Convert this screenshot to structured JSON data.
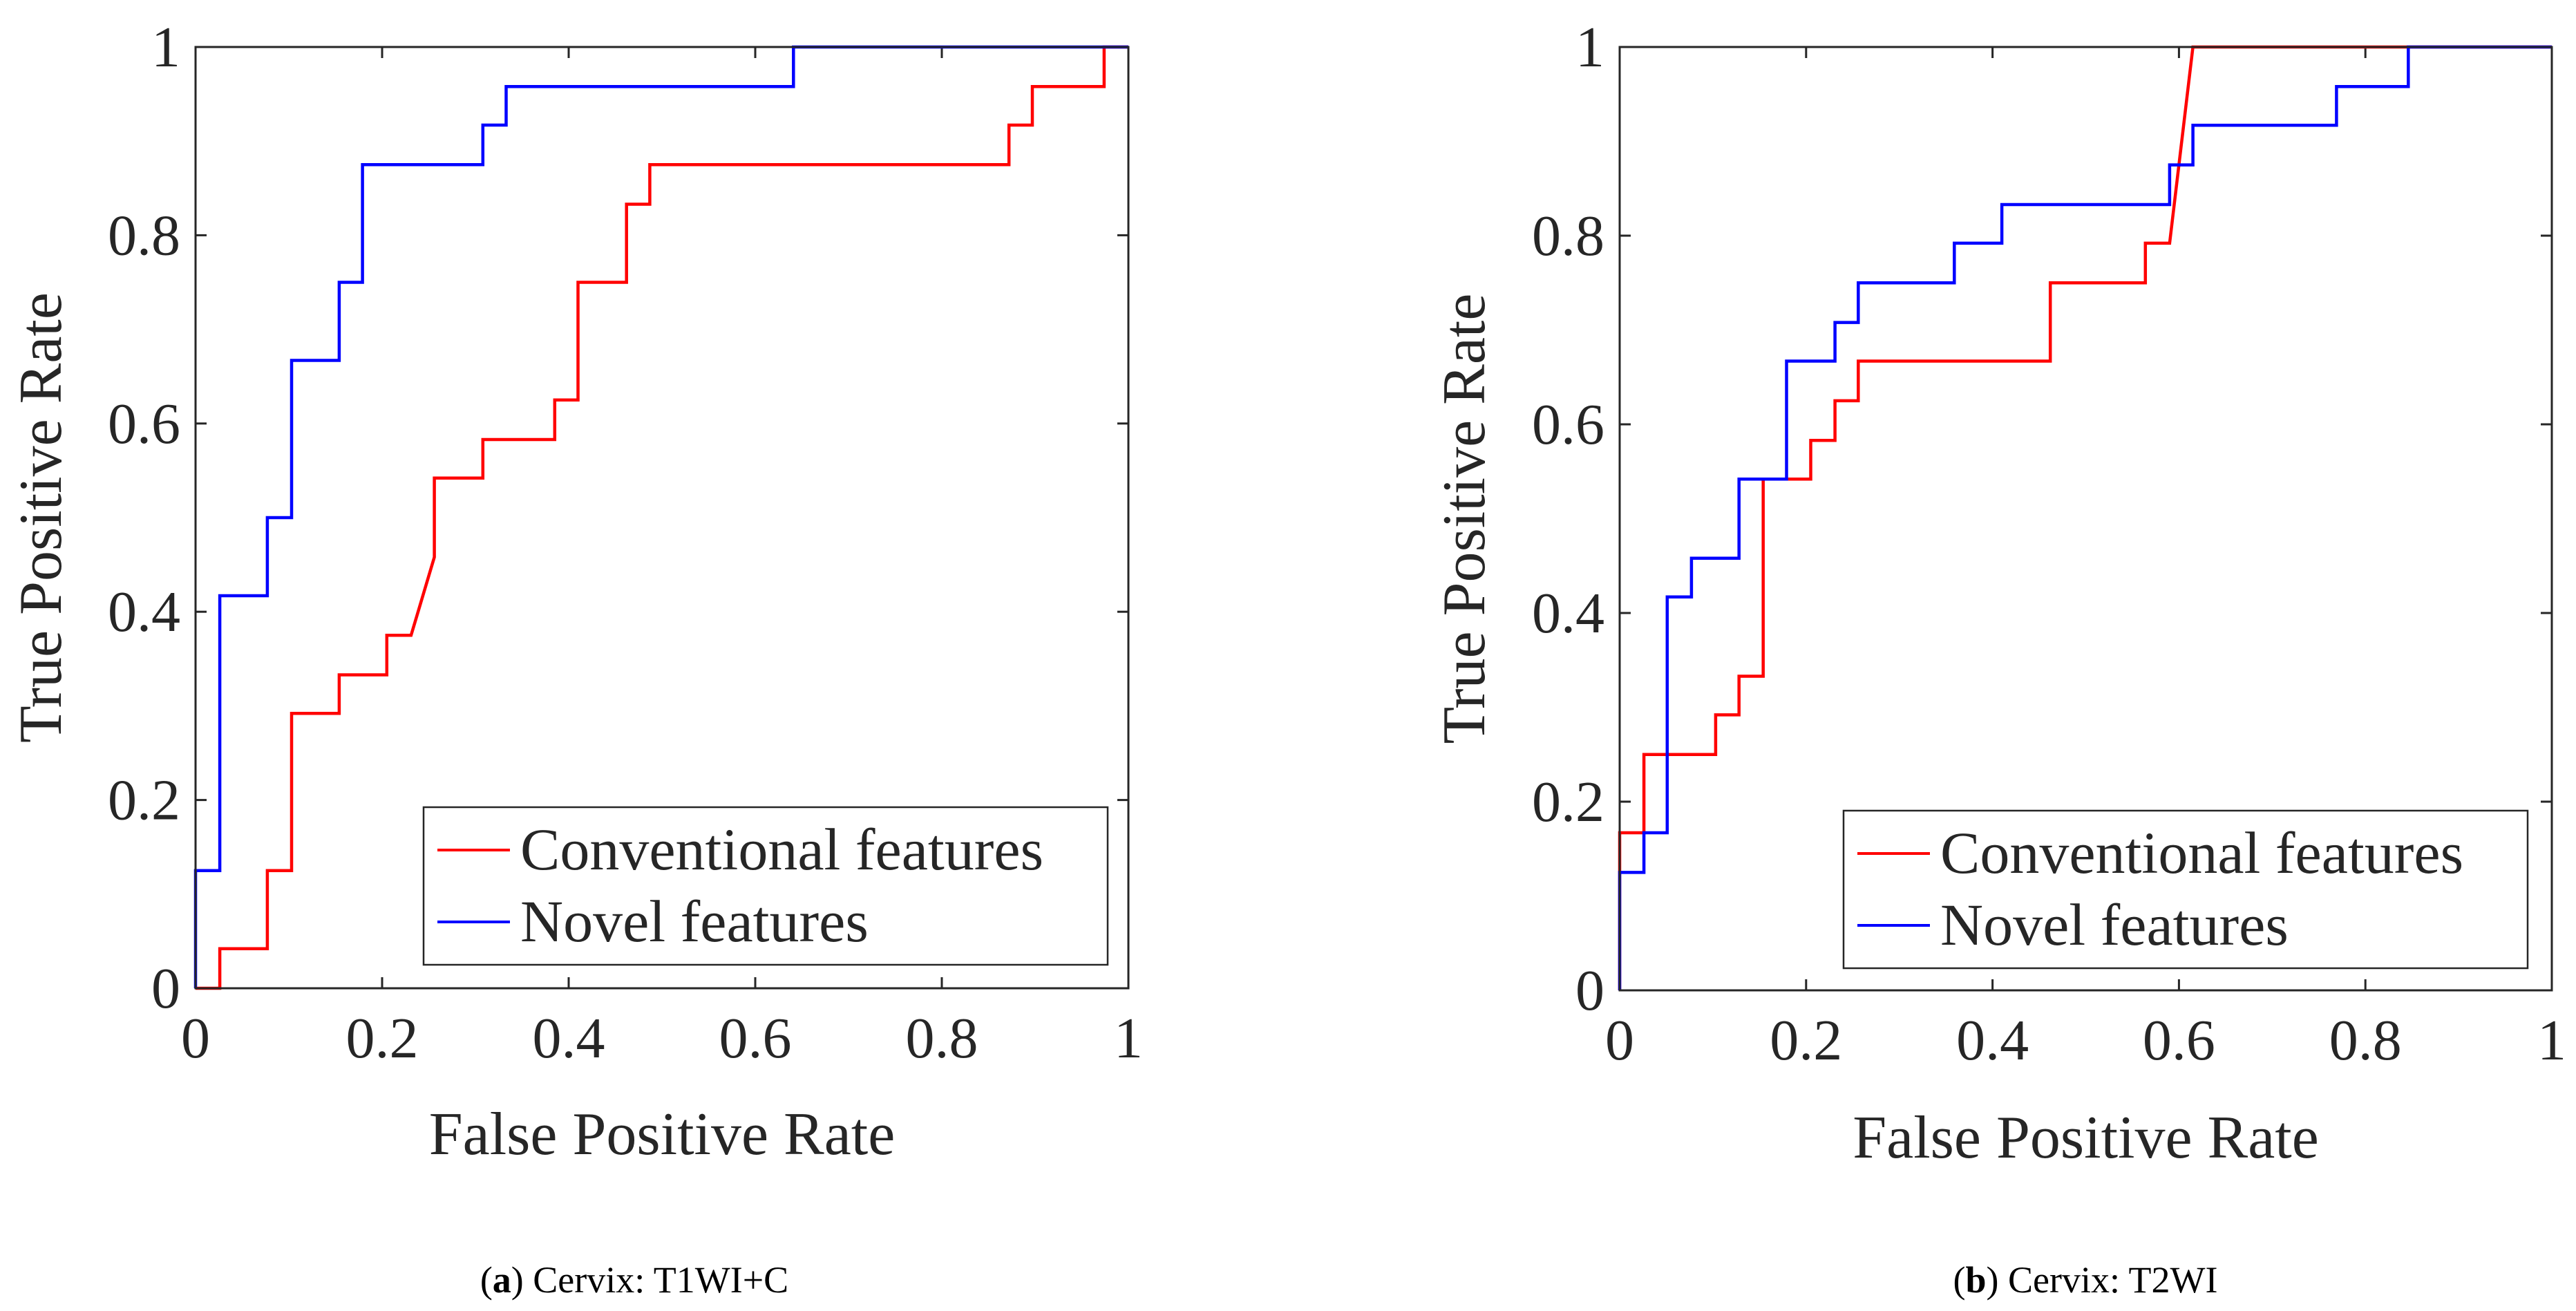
{
  "chart_data": [
    {
      "type": "line",
      "panel": "a",
      "caption": {
        "letter": "a",
        "open": "(",
        "close": ")",
        "text": " Cervix: T1WI+C"
      },
      "xlabel": "False Positive Rate",
      "ylabel": "True Positive Rate",
      "xlim": [
        0,
        1
      ],
      "ylim": [
        0,
        1
      ],
      "xticks": [
        0,
        0.2,
        0.4,
        0.6,
        0.8,
        1
      ],
      "xtick_labels": [
        "0",
        "0.2",
        "0.4",
        "0.6",
        "0.8",
        "1"
      ],
      "yticks": [
        0,
        0.2,
        0.4,
        0.6,
        0.8,
        1
      ],
      "ytick_labels": [
        "0",
        "0.2",
        "0.4",
        "0.6",
        "0.8",
        "1"
      ],
      "grid": false,
      "legend": "bottom-right",
      "series": [
        {
          "name": "Conventional features",
          "color": "#ff0000",
          "points": [
            [
              0,
              0
            ],
            [
              0.026,
              0
            ],
            [
              0.026,
              0.042
            ],
            [
              0.077,
              0.042
            ],
            [
              0.077,
              0.125
            ],
            [
              0.103,
              0.125
            ],
            [
              0.103,
              0.292
            ],
            [
              0.154,
              0.292
            ],
            [
              0.154,
              0.333
            ],
            [
              0.205,
              0.333
            ],
            [
              0.205,
              0.375
            ],
            [
              0.231,
              0.375
            ],
            [
              0.256,
              0.458
            ],
            [
              0.256,
              0.542
            ],
            [
              0.308,
              0.542
            ],
            [
              0.308,
              0.583
            ],
            [
              0.385,
              0.583
            ],
            [
              0.385,
              0.625
            ],
            [
              0.41,
              0.625
            ],
            [
              0.41,
              0.75
            ],
            [
              0.462,
              0.75
            ],
            [
              0.462,
              0.833
            ],
            [
              0.487,
              0.833
            ],
            [
              0.487,
              0.875
            ],
            [
              0.872,
              0.875
            ],
            [
              0.872,
              0.917
            ],
            [
              0.897,
              0.917
            ],
            [
              0.897,
              0.958
            ],
            [
              0.974,
              0.958
            ],
            [
              0.974,
              1
            ],
            [
              1,
              1
            ]
          ]
        },
        {
          "name": "Novel features",
          "color": "#0000ff",
          "points": [
            [
              0,
              0
            ],
            [
              0,
              0.125
            ],
            [
              0.026,
              0.125
            ],
            [
              0.026,
              0.417
            ],
            [
              0.077,
              0.417
            ],
            [
              0.077,
              0.5
            ],
            [
              0.103,
              0.5
            ],
            [
              0.103,
              0.667
            ],
            [
              0.154,
              0.667
            ],
            [
              0.154,
              0.75
            ],
            [
              0.179,
              0.75
            ],
            [
              0.179,
              0.875
            ],
            [
              0.308,
              0.875
            ],
            [
              0.308,
              0.917
            ],
            [
              0.333,
              0.917
            ],
            [
              0.333,
              0.958
            ],
            [
              0.641,
              0.958
            ],
            [
              0.641,
              1
            ],
            [
              1,
              1
            ]
          ]
        }
      ]
    },
    {
      "type": "line",
      "panel": "b",
      "caption": {
        "letter": "b",
        "open": "(",
        "close": ")",
        "text": " Cervix: T2WI"
      },
      "xlabel": "False Positive Rate",
      "ylabel": "True Positive Rate",
      "xlim": [
        0,
        1
      ],
      "ylim": [
        0,
        1
      ],
      "xticks": [
        0,
        0.2,
        0.4,
        0.6,
        0.8,
        1
      ],
      "xtick_labels": [
        "0",
        "0.2",
        "0.4",
        "0.6",
        "0.8",
        "1"
      ],
      "yticks": [
        0,
        0.2,
        0.4,
        0.6,
        0.8,
        1
      ],
      "ytick_labels": [
        "0",
        "0.2",
        "0.4",
        "0.6",
        "0.8",
        "1"
      ],
      "grid": false,
      "legend": "bottom-right",
      "series": [
        {
          "name": "Conventional features",
          "color": "#ff0000",
          "points": [
            [
              0,
              0
            ],
            [
              0,
              0.167
            ],
            [
              0.026,
              0.167
            ],
            [
              0.026,
              0.25
            ],
            [
              0.103,
              0.25
            ],
            [
              0.103,
              0.292
            ],
            [
              0.128,
              0.292
            ],
            [
              0.128,
              0.333
            ],
            [
              0.154,
              0.333
            ],
            [
              0.154,
              0.542
            ],
            [
              0.205,
              0.542
            ],
            [
              0.205,
              0.583
            ],
            [
              0.231,
              0.583
            ],
            [
              0.231,
              0.625
            ],
            [
              0.256,
              0.625
            ],
            [
              0.256,
              0.667
            ],
            [
              0.462,
              0.667
            ],
            [
              0.462,
              0.75
            ],
            [
              0.564,
              0.75
            ],
            [
              0.564,
              0.792
            ],
            [
              0.59,
              0.792
            ],
            [
              0.615,
              1
            ],
            [
              1,
              1
            ]
          ]
        },
        {
          "name": "Novel features",
          "color": "#0000ff",
          "points": [
            [
              0,
              0
            ],
            [
              0,
              0.125
            ],
            [
              0.026,
              0.125
            ],
            [
              0.026,
              0.167
            ],
            [
              0.051,
              0.167
            ],
            [
              0.051,
              0.417
            ],
            [
              0.077,
              0.417
            ],
            [
              0.077,
              0.458
            ],
            [
              0.128,
              0.458
            ],
            [
              0.128,
              0.542
            ],
            [
              0.179,
              0.542
            ],
            [
              0.179,
              0.667
            ],
            [
              0.231,
              0.667
            ],
            [
              0.231,
              0.708
            ],
            [
              0.256,
              0.708
            ],
            [
              0.256,
              0.75
            ],
            [
              0.359,
              0.75
            ],
            [
              0.359,
              0.792
            ],
            [
              0.41,
              0.792
            ],
            [
              0.41,
              0.833
            ],
            [
              0.59,
              0.833
            ],
            [
              0.59,
              0.875
            ],
            [
              0.615,
              0.875
            ],
            [
              0.615,
              0.917
            ],
            [
              0.769,
              0.917
            ],
            [
              0.769,
              0.958
            ],
            [
              0.846,
              0.958
            ],
            [
              0.846,
              1
            ],
            [
              1,
              1
            ]
          ]
        }
      ]
    }
  ]
}
